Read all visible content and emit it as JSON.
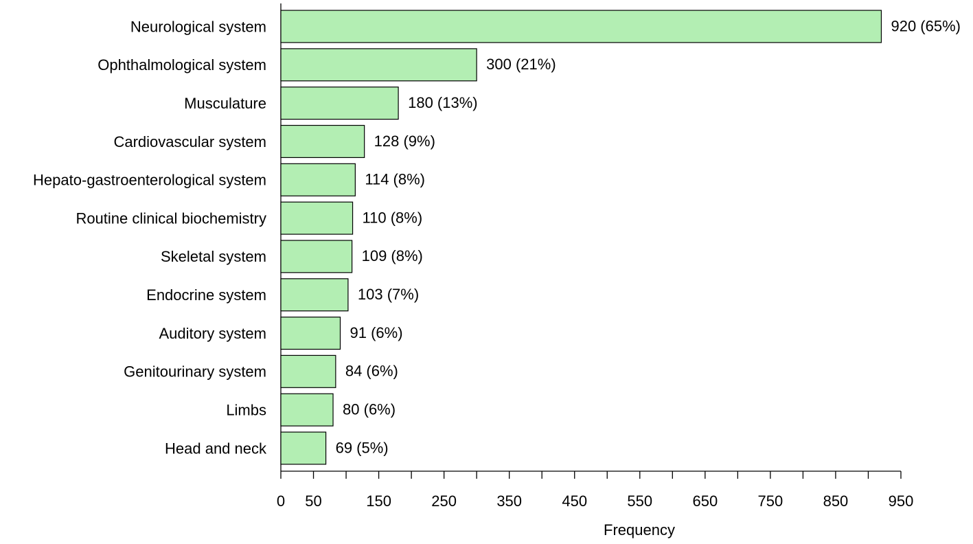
{
  "chart_data": {
    "type": "bar",
    "orientation": "horizontal",
    "x_label": "Frequency",
    "categories": [
      "Neurological system",
      "Ophthalmological system",
      "Musculature",
      "Cardiovascular system",
      "Hepato-gastroenterological system",
      "Routine clinical biochemistry",
      "Skeletal system",
      "Endocrine system",
      "Auditory system",
      "Genitourinary system",
      "Limbs",
      "Head and neck"
    ],
    "values": [
      920,
      300,
      180,
      128,
      114,
      110,
      109,
      103,
      91,
      84,
      80,
      69
    ],
    "value_labels": [
      "920 (65%)",
      "300 (21%)",
      "180 (13%)",
      "128 (9%)",
      "114 (8%)",
      "110 (8%)",
      "109 (8%)",
      "103 (7%)",
      "91 (6%)",
      "84 (6%)",
      "80 (6%)",
      "69 (5%)"
    ],
    "color": "#b3eeb3",
    "xlim": [
      0,
      950
    ],
    "xticks": [
      0,
      50,
      150,
      250,
      350,
      450,
      550,
      650,
      750,
      850,
      950
    ],
    "minor_xticks": [
      100,
      200,
      300,
      400,
      500,
      600,
      700,
      800,
      900
    ],
    "grid": false
  }
}
